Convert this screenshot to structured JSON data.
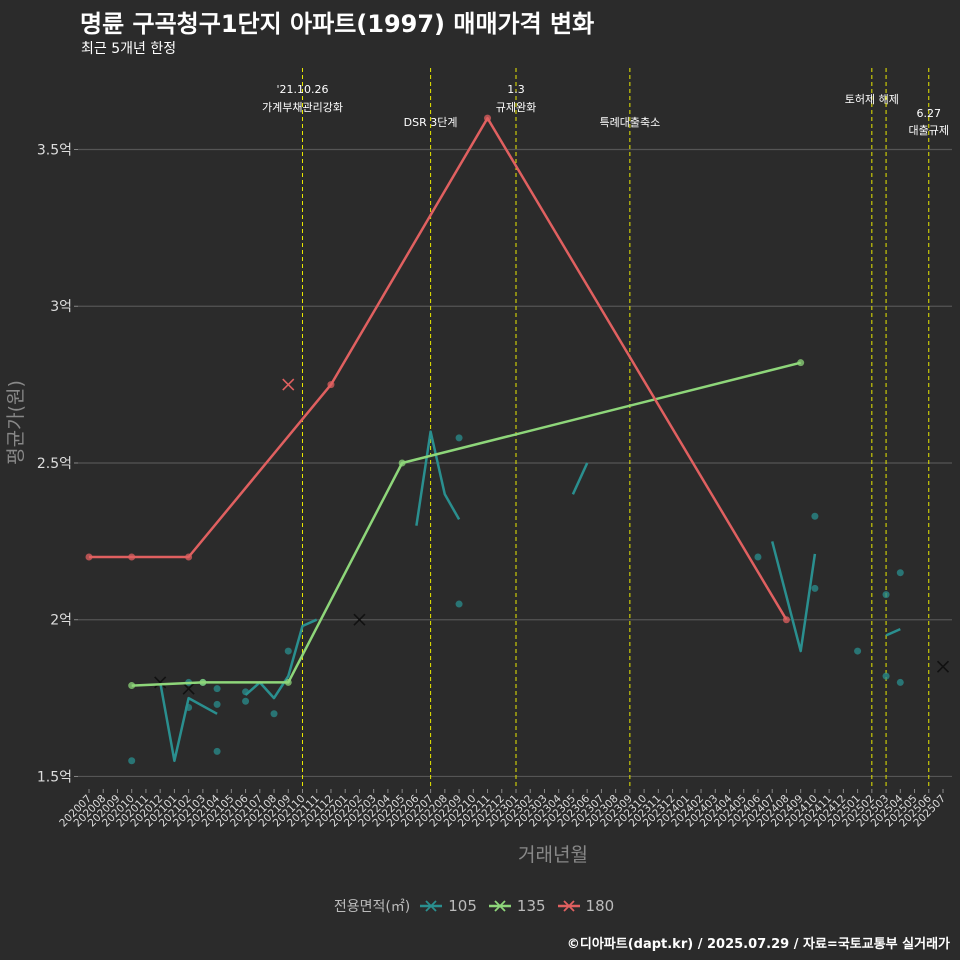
{
  "title": "명륜 구곡청구1단지 아파트(1997) 매매가격 변화",
  "subtitle": "최근 5개년 한정",
  "caption": "©디아파트(dapt.kr) / 2025.07.29 / 자료=국토교통부 실거래가",
  "legend": {
    "title": "전용면적(㎡)",
    "items": [
      {
        "label": "105",
        "color": "#2a8f8f"
      },
      {
        "label": "135",
        "color": "#8ed67a"
      },
      {
        "label": "180",
        "color": "#e06060"
      }
    ]
  },
  "colors": {
    "background": "#2b2b2b",
    "grid": "#555555",
    "event_line": "#e8e800",
    "text": "#ffffff",
    "axis_title": "#888888",
    "tick": "#dddddd"
  },
  "chart_data": {
    "type": "line",
    "xlabel": "거래년월",
    "ylabel": "평균가(원)",
    "ylim": [
      1.46,
      3.76
    ],
    "y_ticks": [
      {
        "v": 1.5,
        "label": "1.5억"
      },
      {
        "v": 2.0,
        "label": "2억"
      },
      {
        "v": 2.5,
        "label": "2.5억"
      },
      {
        "v": 3.0,
        "label": "3억"
      },
      {
        "v": 3.5,
        "label": "3.5억"
      }
    ],
    "categories": [
      "202007",
      "202008",
      "202009",
      "202010",
      "202011",
      "202012",
      "202101",
      "202102",
      "202103",
      "202104",
      "202105",
      "202106",
      "202107",
      "202108",
      "202109",
      "202110",
      "202111",
      "202112",
      "202201",
      "202202",
      "202203",
      "202204",
      "202205",
      "202206",
      "202207",
      "202208",
      "202209",
      "202210",
      "202211",
      "202212",
      "202301",
      "202302",
      "202303",
      "202304",
      "202305",
      "202306",
      "202307",
      "202308",
      "202309",
      "202310",
      "202311",
      "202312",
      "202401",
      "202402",
      "202403",
      "202404",
      "202405",
      "202406",
      "202407",
      "202408",
      "202409",
      "202410",
      "202411",
      "202412",
      "202501",
      "202502",
      "202503",
      "202504",
      "202505",
      "202506",
      "202507"
    ],
    "events": [
      {
        "x": 15,
        "label1": "'21.10.26",
        "label2": "가계부채관리강화"
      },
      {
        "x": 24,
        "label1": "",
        "label2": "DSR 3단계"
      },
      {
        "x": 30,
        "label1": "1.3",
        "label2": "규제완화"
      },
      {
        "x": 38,
        "label1": "",
        "label2": "특례대출축소"
      },
      {
        "x": 55,
        "label1": "",
        "label2": "토허제 해제"
      },
      {
        "x": 56,
        "label1": "",
        "label2": ""
      },
      {
        "x": 59,
        "label1": "6.27",
        "label2": "대출규제"
      }
    ],
    "series": [
      {
        "name": "105",
        "color": "#2a8f8f",
        "line_segments": [
          [
            [
              5,
              1.8
            ],
            [
              6,
              1.55
            ],
            [
              7,
              1.75
            ],
            [
              9,
              1.7
            ]
          ],
          [
            [
              11,
              1.76
            ],
            [
              12,
              1.8
            ],
            [
              13,
              1.75
            ],
            [
              14,
              1.82
            ],
            [
              15,
              1.98
            ],
            [
              16,
              2.0
            ]
          ],
          [
            [
              23,
              2.3
            ],
            [
              24,
              2.6
            ],
            [
              25,
              2.4
            ],
            [
              26,
              2.32
            ]
          ],
          [
            [
              34,
              2.4
            ],
            [
              35,
              2.5
            ]
          ],
          [
            [
              48,
              2.25
            ],
            [
              50,
              1.9
            ],
            [
              51,
              2.21
            ]
          ],
          [
            [
              56,
              1.95
            ],
            [
              57,
              1.97
            ]
          ]
        ],
        "points": [
          [
            3,
            1.55
          ],
          [
            7,
            1.72
          ],
          [
            7,
            1.8
          ],
          [
            8,
            1.8
          ],
          [
            9,
            1.73
          ],
          [
            9,
            1.78
          ],
          [
            9,
            1.58
          ],
          [
            11,
            1.77
          ],
          [
            11,
            1.74
          ],
          [
            13,
            1.7
          ],
          [
            14,
            1.9
          ],
          [
            26,
            2.58
          ],
          [
            26,
            2.05
          ],
          [
            47,
            2.2
          ],
          [
            51,
            2.1
          ],
          [
            51,
            2.33
          ],
          [
            54,
            1.9
          ],
          [
            56,
            2.08
          ],
          [
            56,
            1.82
          ],
          [
            57,
            2.15
          ],
          [
            57,
            1.8
          ]
        ],
        "crosses": [
          [
            5,
            1.8
          ],
          [
            7,
            1.78
          ],
          [
            19,
            2.0
          ],
          [
            60,
            1.85
          ]
        ]
      },
      {
        "name": "135",
        "color": "#8ed67a",
        "line_segments": [
          [
            [
              3,
              1.79
            ],
            [
              8,
              1.8
            ],
            [
              14,
              1.8
            ],
            [
              22,
              2.5
            ],
            [
              50,
              2.82
            ]
          ]
        ],
        "points": [
          [
            3,
            1.79
          ],
          [
            8,
            1.8
          ],
          [
            14,
            1.8
          ],
          [
            22,
            2.5
          ],
          [
            50,
            2.82
          ]
        ],
        "crosses": []
      },
      {
        "name": "180",
        "color": "#e06060",
        "line_segments": [
          [
            [
              0,
              2.2
            ],
            [
              3,
              2.2
            ],
            [
              7,
              2.2
            ],
            [
              17,
              2.75
            ],
            [
              28,
              3.6
            ],
            [
              49,
              2.0
            ]
          ]
        ],
        "points": [
          [
            0,
            2.2
          ],
          [
            3,
            2.2
          ],
          [
            7,
            2.2
          ],
          [
            17,
            2.75
          ],
          [
            28,
            3.6
          ],
          [
            49,
            2.0
          ]
        ],
        "crosses": [
          [
            14,
            2.75
          ]
        ]
      }
    ]
  }
}
